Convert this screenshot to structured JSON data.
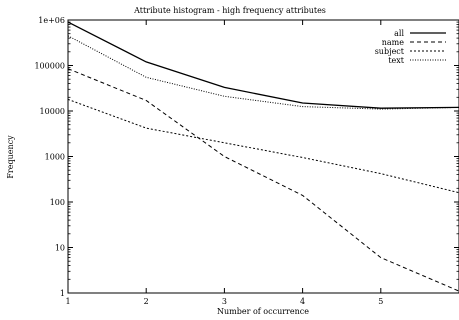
{
  "chart_data": {
    "type": "line",
    "title": "Attribute histogram - high frequency attributes",
    "xlabel": "Number of occurrence",
    "ylabel": "Frequency",
    "y_scale": "log",
    "xlim": [
      1,
      6
    ],
    "ylim": [
      1,
      1000000
    ],
    "x_ticks": [
      1,
      2,
      3,
      4,
      5
    ],
    "y_ticks": [
      {
        "value": 1,
        "label": "1"
      },
      {
        "value": 10,
        "label": "10"
      },
      {
        "value": 100,
        "label": "100"
      },
      {
        "value": 1000,
        "label": "1000"
      },
      {
        "value": 10000,
        "label": "10000"
      },
      {
        "value": 100000,
        "label": "100000"
      },
      {
        "value": 1000000,
        "label": "1e+06"
      }
    ],
    "legend_position": "top-right",
    "x": [
      1,
      2,
      3,
      4,
      5,
      6
    ],
    "series": [
      {
        "name": "all",
        "dash": "solid",
        "values": [
          900000,
          120000,
          33000,
          15000,
          11500,
          12000
        ]
      },
      {
        "name": "name",
        "dash": "dashed",
        "values": [
          85000,
          17000,
          1000,
          140,
          6,
          1.1
        ]
      },
      {
        "name": "subject",
        "dash": "dash-short",
        "values": [
          18000,
          4200,
          2000,
          950,
          420,
          160
        ]
      },
      {
        "name": "text",
        "dash": "dotted",
        "values": [
          450000,
          55000,
          21000,
          12500,
          11000,
          12000
        ]
      }
    ]
  }
}
